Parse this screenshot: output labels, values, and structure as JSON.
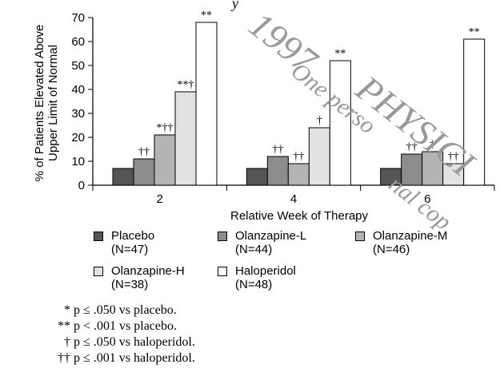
{
  "chart_data": {
    "type": "bar",
    "ylabel_line1": "% of Patients Elevated Above",
    "ylabel_line2": "Upper Limit of Normal",
    "xlabel": "Relative Week of Therapy",
    "ylim": [
      0,
      70
    ],
    "yticks": [
      "0",
      "10",
      "20",
      "30",
      "40",
      "50",
      "60",
      "70"
    ],
    "categories": [
      "2",
      "4",
      "6"
    ],
    "series": [
      {
        "name": "Placebo",
        "n": "(N=47)",
        "color": "#555555",
        "values": [
          7,
          7,
          7
        ]
      },
      {
        "name": "Olanzapine-L",
        "n": "(N=44)",
        "color": "#8c8c8c",
        "values": [
          11,
          12,
          13
        ]
      },
      {
        "name": "Olanzapine-M",
        "n": "(N=46)",
        "color": "#b4b4b4",
        "values": [
          21,
          9,
          14
        ]
      },
      {
        "name": "Olanzapine-H",
        "n": "(N=38)",
        "color": "#e2e2e2",
        "values": [
          39,
          24,
          9
        ]
      },
      {
        "name": "Haloperidol",
        "n": "(N=48)",
        "color": "#ffffff",
        "values": [
          68,
          52,
          61
        ]
      }
    ],
    "annotations": [
      [
        "",
        "††",
        "*††",
        "**†",
        "**"
      ],
      [
        "",
        "††",
        "††",
        "†",
        "**"
      ],
      [
        "",
        "††",
        "†",
        "††",
        "**"
      ]
    ]
  },
  "footnotes": [
    {
      "symbol": "*",
      "text": "p ≤ .050 vs placebo."
    },
    {
      "symbol": "**",
      "text": "p < .001 vs placebo."
    },
    {
      "symbol": "†",
      "text": "p ≤ .050 vs haloperidol."
    },
    {
      "symbol": "††",
      "text": "p ≤ .001 vs haloperidol."
    }
  ],
  "watermark": {
    "year": "1997",
    "word1": "PHYSICI",
    "word2": "One perso",
    "word3": "nal cop"
  },
  "header_fragment": "y"
}
